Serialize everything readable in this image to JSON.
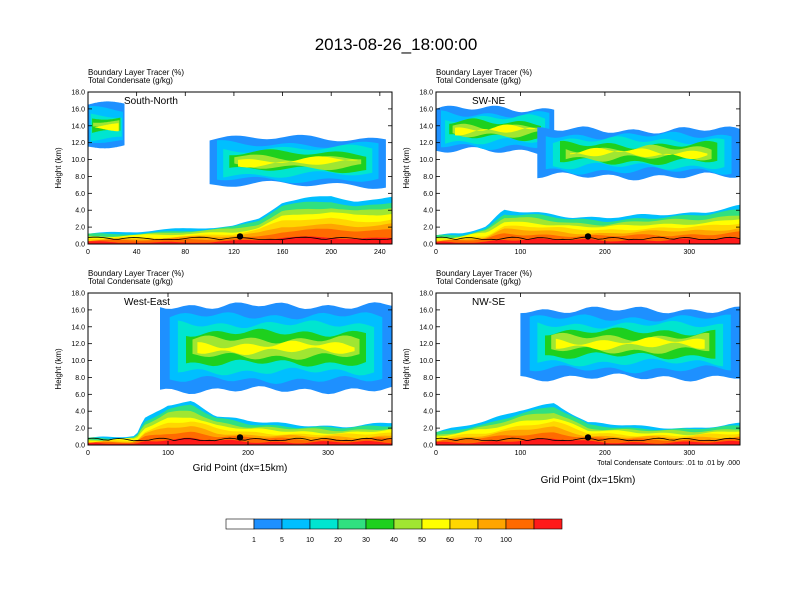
{
  "chart_data": {
    "type": "heatmap",
    "title": "2013-08-26_18:00:00",
    "subtitle_lines": [
      "Boundary Layer Tracer    (%)",
      "Total Condensate    (g/kg)"
    ],
    "shading_variable": "Boundary Layer Tracer (%)",
    "contour_variable": "Total Condensate (g/kg)",
    "contour_note": "Total Condensate Contours: .01 to .01 by .000",
    "xlabel": "Grid Point (dx=15km)",
    "ylabel": "Height (km)",
    "ylim": [
      0,
      18
    ],
    "y_ticks": [
      "0.0",
      "2.0",
      "4.0",
      "6.0",
      "8.0",
      "10.0",
      "12.0",
      "14.0",
      "16.0",
      "18.0"
    ],
    "colorbar": {
      "levels": [
        "1",
        "5",
        "10",
        "20",
        "30",
        "40",
        "50",
        "60",
        "70",
        "100"
      ],
      "colors": [
        "#ffffff",
        "#1e90ff",
        "#00bfff",
        "#00e5d0",
        "#30e080",
        "#1ed01e",
        "#a0e632",
        "#ffff00",
        "#ffd700",
        "#ffa500",
        "#ff6a00",
        "#ff1a1a"
      ]
    },
    "panels": [
      {
        "name": "South-North",
        "xlim": [
          0,
          250
        ],
        "x_ticks": [
          "0",
          "40",
          "80",
          "120",
          "160",
          "200",
          "240"
        ],
        "marker_x": 125,
        "boundary_layer_top_km": [
          [
            0,
            1.2
          ],
          [
            20,
            1.3
          ],
          [
            40,
            1.4
          ],
          [
            60,
            1.6
          ],
          [
            80,
            1.8
          ],
          [
            100,
            2.0
          ],
          [
            120,
            2.2
          ],
          [
            140,
            3.0
          ],
          [
            160,
            5.0
          ],
          [
            180,
            5.4
          ],
          [
            200,
            5.6
          ],
          [
            220,
            5.0
          ],
          [
            240,
            5.2
          ],
          [
            250,
            5.5
          ]
        ],
        "upper_layer": [
          {
            "x0": 0,
            "x1": 30,
            "ybot": 11.5,
            "ytop": 16.5
          },
          {
            "x0": 100,
            "x1": 245,
            "ybot": 7.0,
            "ytop": 12.5
          }
        ]
      },
      {
        "name": "SW-NE",
        "xlim": [
          0,
          360
        ],
        "x_ticks": [
          "0",
          "100",
          "200",
          "300"
        ],
        "marker_x": 180,
        "boundary_layer_top_km": [
          [
            0,
            1.0
          ],
          [
            30,
            1.2
          ],
          [
            60,
            2.0
          ],
          [
            80,
            4.0
          ],
          [
            120,
            3.8
          ],
          [
            160,
            3.2
          ],
          [
            200,
            3.0
          ],
          [
            240,
            3.4
          ],
          [
            280,
            3.6
          ],
          [
            320,
            3.8
          ],
          [
            360,
            4.5
          ]
        ],
        "upper_layer": [
          {
            "x0": 0,
            "x1": 140,
            "ybot": 11.0,
            "ytop": 16.0
          },
          {
            "x0": 120,
            "x1": 360,
            "ybot": 8.0,
            "ytop": 13.5
          }
        ]
      },
      {
        "name": "West-East",
        "xlim": [
          0,
          380
        ],
        "x_ticks": [
          "0",
          "100",
          "200",
          "300"
        ],
        "marker_x": 190,
        "boundary_layer_top_km": [
          [
            0,
            0.8
          ],
          [
            60,
            1.0
          ],
          [
            70,
            3.0
          ],
          [
            100,
            4.8
          ],
          [
            130,
            5.2
          ],
          [
            160,
            3.5
          ],
          [
            200,
            2.8
          ],
          [
            260,
            2.4
          ],
          [
            320,
            2.2
          ],
          [
            380,
            2.6
          ]
        ],
        "upper_layer": [
          {
            "x0": 90,
            "x1": 380,
            "ybot": 6.5,
            "ytop": 16.5
          }
        ]
      },
      {
        "name": "NW-SE",
        "xlim": [
          0,
          360
        ],
        "x_ticks": [
          "0",
          "100",
          "200",
          "300"
        ],
        "marker_x": 180,
        "boundary_layer_top_km": [
          [
            0,
            1.5
          ],
          [
            60,
            2.8
          ],
          [
            100,
            4.2
          ],
          [
            140,
            5.0
          ],
          [
            180,
            2.6
          ],
          [
            240,
            2.2
          ],
          [
            300,
            2.0
          ],
          [
            360,
            2.5
          ]
        ],
        "upper_layer": [
          {
            "x0": 100,
            "x1": 360,
            "ybot": 8.0,
            "ytop": 16.0
          }
        ]
      }
    ]
  }
}
